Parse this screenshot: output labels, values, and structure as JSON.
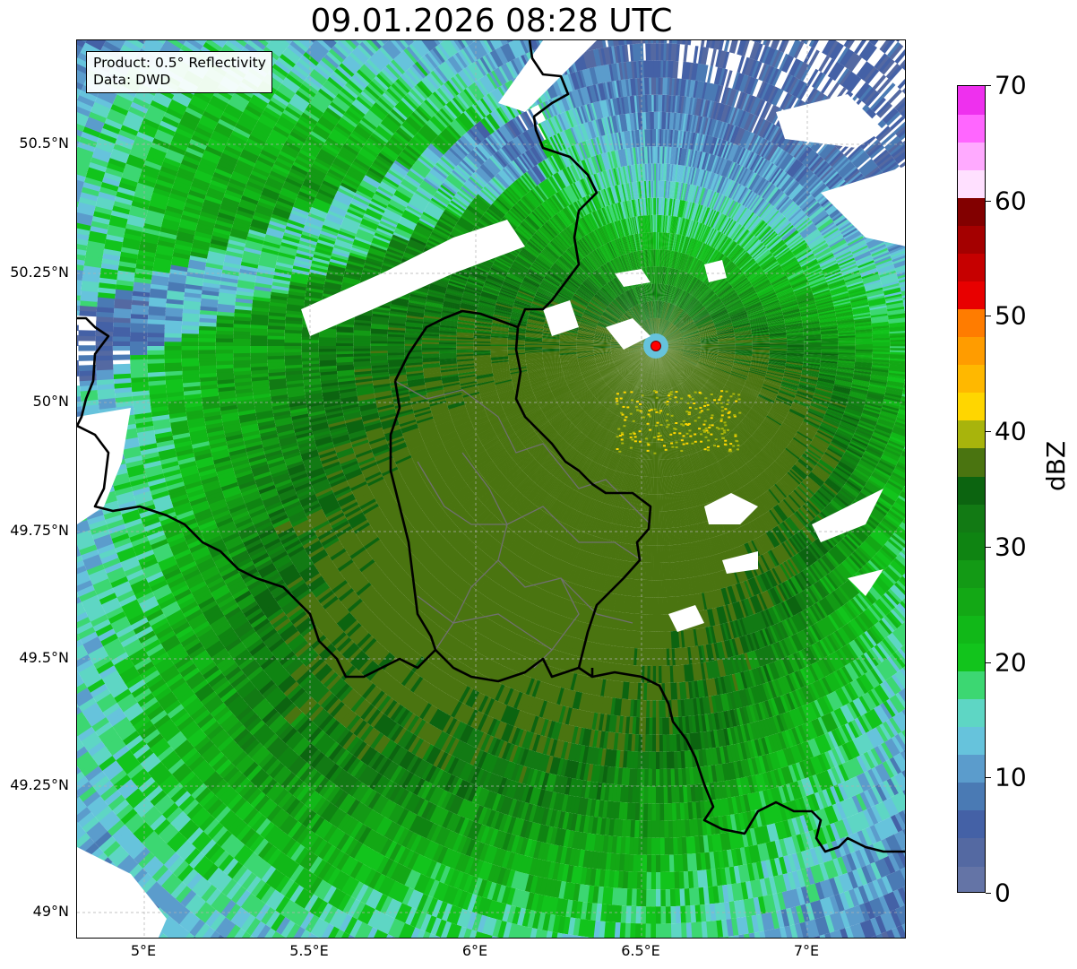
{
  "title": "09.01.2026 08:28 UTC",
  "info": {
    "product": "Product: 0.5° Reflectivity",
    "data": "Data: DWD"
  },
  "axes": {
    "lat_ticks": [
      "50.5°N",
      "50.25°N",
      "50°N",
      "49.75°N",
      "49.5°N",
      "49.25°N",
      "49°N"
    ],
    "lon_ticks": [
      "5°E",
      "5.5°E",
      "6°E",
      "6.5°E",
      "7°E"
    ],
    "lat_range": [
      48.95,
      50.7
    ],
    "lon_range": [
      4.82,
      7.3
    ]
  },
  "colorbar": {
    "unit": "dBZ",
    "min": 0,
    "max": 70,
    "tick_labels": [
      "0",
      "10",
      "20",
      "30",
      "40",
      "50",
      "60",
      "70"
    ],
    "colors": [
      "#6474a6",
      "#5469a2",
      "#4461a6",
      "#4a7ab4",
      "#5b9ccc",
      "#66c3dc",
      "#5ed6c4",
      "#3cd772",
      "#12c41c",
      "#11b818",
      "#13a815",
      "#139a15",
      "#0f8412",
      "#127a14",
      "#0c6410",
      "#4a7410",
      "#a8b40c",
      "#ffd600",
      "#ffb800",
      "#ff9c00",
      "#ff7c00",
      "#e80000",
      "#c60000",
      "#a40000",
      "#820000",
      "#ffe0ff",
      "#ffaaff",
      "#ff66ff",
      "#ee30ee"
    ]
  },
  "radar_site": {
    "lon": 6.55,
    "lat": 50.11,
    "color": "#ff0000"
  },
  "colors": {
    "border": "#000000",
    "admin_border": "#707070",
    "grid": "#b0b0b0"
  }
}
